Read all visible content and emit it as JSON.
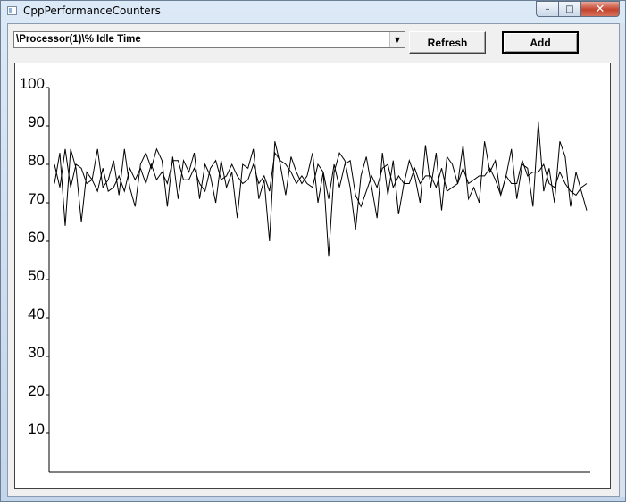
{
  "window": {
    "title": "CppPerformanceCounters",
    "caption": {
      "minimize": "–",
      "maximize": "□",
      "close": "✕"
    }
  },
  "toolbar": {
    "counter_value": "\\Processor(1)\\% Idle Time",
    "refresh_label": "Refresh",
    "add_label": "Add"
  },
  "colors": {
    "line": "#000000",
    "plot_bg": "#ffffff",
    "face": "#f0f0f0"
  },
  "chart_data": {
    "type": "line",
    "title": "",
    "xlabel": "",
    "ylabel": "",
    "ylim": [
      0,
      100
    ],
    "yticks": [
      10,
      20,
      30,
      40,
      50,
      60,
      70,
      80,
      90,
      100
    ],
    "grid": false,
    "legend": "none",
    "x": [
      0,
      1,
      2,
      3,
      4,
      5,
      6,
      7,
      8,
      9,
      10,
      11,
      12,
      13,
      14,
      15,
      16,
      17,
      18,
      19,
      20,
      21,
      22,
      23,
      24,
      25,
      26,
      27,
      28,
      29,
      30,
      31,
      32,
      33,
      34,
      35,
      36,
      37,
      38,
      39,
      40,
      41,
      42,
      43,
      44,
      45,
      46,
      47,
      48,
      49,
      50,
      51,
      52,
      53,
      54,
      55,
      56,
      57,
      58,
      59,
      60,
      61,
      62,
      63,
      64,
      65,
      66,
      67,
      68,
      69,
      70,
      71,
      72,
      73,
      74,
      75,
      76,
      77,
      78,
      79,
      80,
      81,
      82,
      83,
      84,
      85,
      86,
      87,
      88,
      89,
      90,
      91,
      92,
      93,
      94,
      95,
      96,
      97,
      98,
      99
    ],
    "series": [
      {
        "values": [
          75,
          83,
          64,
          84,
          79,
          65,
          78,
          76,
          84,
          74,
          76,
          81,
          72,
          84,
          74,
          69,
          80,
          83,
          79,
          84,
          81,
          69,
          82,
          71,
          81,
          78,
          83,
          71,
          80,
          77,
          70,
          81,
          74,
          78,
          66,
          80,
          79,
          84,
          71,
          76,
          60,
          86,
          80,
          72,
          82,
          78,
          75,
          77,
          83,
          70,
          78,
          56,
          78,
          83,
          81,
          74,
          63,
          77,
          82,
          74,
          66,
          83,
          72,
          81,
          67,
          75,
          81,
          77,
          70,
          85,
          74,
          83,
          68,
          82,
          80,
          75,
          85,
          71,
          74,
          70,
          86,
          78,
          81,
          72,
          77,
          84,
          71,
          80,
          79,
          69,
          91,
          73,
          79,
          70,
          86,
          82,
          69,
          78,
          73,
          68
        ]
      },
      {
        "values": [
          80,
          74,
          84,
          74,
          80,
          79,
          75,
          76,
          73,
          79,
          73,
          74,
          77,
          73,
          79,
          76,
          79,
          75,
          80,
          76,
          78,
          75,
          81,
          81,
          76,
          76,
          79,
          75,
          73,
          79,
          81,
          76,
          77,
          80,
          77,
          75,
          76,
          80,
          75,
          77,
          73,
          83,
          81,
          80,
          78,
          75,
          77,
          75,
          74,
          80,
          78,
          71,
          80,
          74,
          80,
          81,
          72,
          69,
          73,
          77,
          74,
          79,
          80,
          74,
          77,
          75,
          75,
          79,
          75,
          77,
          77,
          74,
          79,
          73,
          74,
          75,
          79,
          75,
          76,
          77,
          77,
          79,
          76,
          72,
          77,
          75,
          75,
          81,
          77,
          78,
          78,
          80,
          75,
          74,
          78,
          75,
          73,
          72,
          74,
          75
        ]
      }
    ]
  }
}
